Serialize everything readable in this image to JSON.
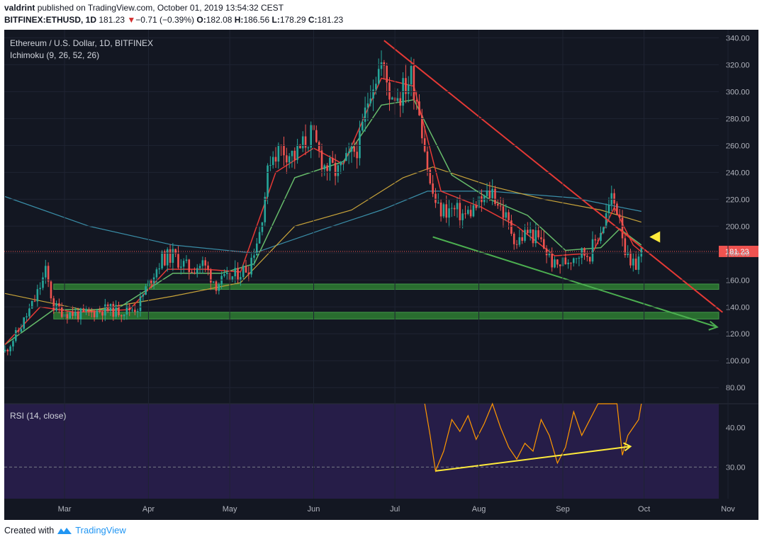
{
  "header": {
    "author": "valdrint",
    "published_text": "published on TradingView.com, October 01, 2019 13:54:32 CEST",
    "symbol": "BITFINEX:ETHUSD, 1D",
    "last": "181.23",
    "change_arrow": "▼",
    "change": "−0.71 (−0.39%)",
    "o_label": "O:",
    "o": "182.08",
    "h_label": "H:",
    "h": "186.56",
    "l_label": "L:",
    "l": "178.29",
    "c_label": "C:",
    "c": "181.23"
  },
  "footer": {
    "created_with": "Created with",
    "brand": "TradingView",
    "logo_icon": "tradingview-logo-icon"
  },
  "colors": {
    "background": "#131722",
    "rsi_background": "#2a1f4f",
    "bull": "#26a69a",
    "bear": "#ef5350",
    "tenkan": "#e53935",
    "kijun": "#66bb6a",
    "ma_yellow": "#c9a43a",
    "ma_blue": "#3a8ea8",
    "resistance": "#e53935",
    "support": "#4caf50",
    "zones": "#2e7d32",
    "rsi_line": "#ff9800",
    "rsi_trend": "#ffeb3b",
    "marker": "#ffeb3b"
  },
  "chart_data": {
    "type": "candlestick",
    "title": "Ethereum / U.S. Dollar, 1D, BITFINEX",
    "indicator": "Ichimoku (9, 26, 52, 26)",
    "last_price_label": "181.23",
    "y_ticks": [
      "340.00",
      "320.00",
      "300.00",
      "280.00",
      "260.00",
      "240.00",
      "220.00",
      "200.00",
      "180.00",
      "160.00",
      "140.00",
      "120.00",
      "100.00",
      "80.00"
    ],
    "x_ticks": [
      "Mar",
      "Apr",
      "May",
      "Jun",
      "Jul",
      "Aug",
      "Sep",
      "Oct",
      "Nov"
    ],
    "ylim": [
      68,
      346
    ],
    "price_path": [
      [
        "2019-02-07",
        107
      ],
      [
        "2019-02-12",
        122
      ],
      [
        "2019-02-18",
        145
      ],
      [
        "2019-02-22",
        166
      ],
      [
        "2019-02-25",
        140
      ],
      [
        "2019-03-01",
        136
      ],
      [
        "2019-03-08",
        134
      ],
      [
        "2019-03-15",
        138
      ],
      [
        "2019-03-22",
        137
      ],
      [
        "2019-03-28",
        140
      ],
      [
        "2019-04-02",
        162
      ],
      [
        "2019-04-06",
        176
      ],
      [
        "2019-04-10",
        178
      ],
      [
        "2019-04-16",
        168
      ],
      [
        "2019-04-21",
        172
      ],
      [
        "2019-04-26",
        157
      ],
      [
        "2019-05-02",
        162
      ],
      [
        "2019-05-08",
        170
      ],
      [
        "2019-05-12",
        196
      ],
      [
        "2019-05-16",
        252
      ],
      [
        "2019-05-20",
        258
      ],
      [
        "2019-05-25",
        252
      ],
      [
        "2019-05-31",
        268
      ],
      [
        "2019-06-05",
        245
      ],
      [
        "2019-06-10",
        240
      ],
      [
        "2019-06-14",
        250
      ],
      [
        "2019-06-18",
        262
      ],
      [
        "2019-06-22",
        305
      ],
      [
        "2019-06-26",
        320
      ],
      [
        "2019-06-29",
        300
      ],
      [
        "2019-07-03",
        298
      ],
      [
        "2019-07-07",
        312
      ],
      [
        "2019-07-10",
        288
      ],
      [
        "2019-07-14",
        230
      ],
      [
        "2019-07-17",
        212
      ],
      [
        "2019-07-22",
        212
      ],
      [
        "2019-07-27",
        208
      ],
      [
        "2019-08-02",
        218
      ],
      [
        "2019-08-06",
        226
      ],
      [
        "2019-08-10",
        210
      ],
      [
        "2019-08-15",
        188
      ],
      [
        "2019-08-19",
        196
      ],
      [
        "2019-08-24",
        188
      ],
      [
        "2019-08-29",
        170
      ],
      [
        "2019-09-02",
        174
      ],
      [
        "2019-09-06",
        180
      ],
      [
        "2019-09-11",
        180
      ],
      [
        "2019-09-16",
        202
      ],
      [
        "2019-09-19",
        220
      ],
      [
        "2019-09-22",
        210
      ],
      [
        "2019-09-24",
        182
      ],
      [
        "2019-09-26",
        168
      ],
      [
        "2019-09-28",
        172
      ],
      [
        "2019-09-30",
        181
      ]
    ],
    "tenkan_path": [
      [
        "2019-02-07",
        112
      ],
      [
        "2019-02-20",
        140
      ],
      [
        "2019-03-05",
        136
      ],
      [
        "2019-03-25",
        138
      ],
      [
        "2019-04-08",
        168
      ],
      [
        "2019-04-22",
        168
      ],
      [
        "2019-05-05",
        166
      ],
      [
        "2019-05-18",
        240
      ],
      [
        "2019-06-01",
        258
      ],
      [
        "2019-06-12",
        246
      ],
      [
        "2019-06-26",
        310
      ],
      [
        "2019-07-08",
        304
      ],
      [
        "2019-07-18",
        226
      ],
      [
        "2019-08-02",
        214
      ],
      [
        "2019-08-15",
        200
      ],
      [
        "2019-08-29",
        178
      ],
      [
        "2019-09-12",
        180
      ],
      [
        "2019-09-20",
        214
      ],
      [
        "2019-09-27",
        186
      ],
      [
        "2019-09-30",
        181
      ]
    ],
    "kijun_path": [
      [
        "2019-02-07",
        112
      ],
      [
        "2019-02-25",
        138
      ],
      [
        "2019-03-20",
        138
      ],
      [
        "2019-04-10",
        165
      ],
      [
        "2019-04-28",
        165
      ],
      [
        "2019-05-10",
        172
      ],
      [
        "2019-05-25",
        236
      ],
      [
        "2019-06-12",
        248
      ],
      [
        "2019-06-26",
        290
      ],
      [
        "2019-07-08",
        294
      ],
      [
        "2019-07-22",
        238
      ],
      [
        "2019-08-05",
        220
      ],
      [
        "2019-08-19",
        208
      ],
      [
        "2019-09-02",
        182
      ],
      [
        "2019-09-15",
        184
      ],
      [
        "2019-09-22",
        198
      ],
      [
        "2019-09-30",
        186
      ]
    ],
    "ma_yellow_path": [
      [
        "2019-02-07",
        150
      ],
      [
        "2019-03-10",
        137
      ],
      [
        "2019-04-10",
        148
      ],
      [
        "2019-05-05",
        158
      ],
      [
        "2019-05-25",
        200
      ],
      [
        "2019-06-15",
        212
      ],
      [
        "2019-07-04",
        236
      ],
      [
        "2019-07-15",
        244
      ],
      [
        "2019-08-05",
        230
      ],
      [
        "2019-08-25",
        220
      ],
      [
        "2019-09-15",
        212
      ],
      [
        "2019-09-30",
        203
      ]
    ],
    "ma_blue_path": [
      [
        "2019-02-07",
        222
      ],
      [
        "2019-03-10",
        200
      ],
      [
        "2019-04-10",
        186
      ],
      [
        "2019-05-10",
        180
      ],
      [
        "2019-06-05",
        198
      ],
      [
        "2019-06-26",
        212
      ],
      [
        "2019-07-13",
        226
      ],
      [
        "2019-08-05",
        226
      ],
      [
        "2019-09-05",
        221
      ],
      [
        "2019-09-30",
        211
      ]
    ],
    "resistance_line": [
      [
        "2019-06-27",
        338
      ],
      [
        "2019-10-30",
        136
      ]
    ],
    "support_line": [
      [
        "2019-07-15",
        192
      ],
      [
        "2019-10-28",
        125
      ]
    ],
    "zones": [
      [
        153,
        157
      ],
      [
        131,
        136
      ]
    ],
    "zone_start": [
      "2019-02-25",
      "2019-02-25"
    ],
    "marker": {
      "date": "2019-10-03",
      "price": 192
    },
    "rsi": {
      "label": "RSI (14, close)",
      "y_ticks": [
        "40.00",
        "30.00"
      ],
      "dashed_level": 30,
      "ylim": [
        22,
        46
      ],
      "path": [
        [
          "2019-07-12",
          46
        ],
        [
          "2019-07-14",
          38
        ],
        [
          "2019-07-16",
          29
        ],
        [
          "2019-07-19",
          34
        ],
        [
          "2019-07-22",
          42
        ],
        [
          "2019-07-25",
          39
        ],
        [
          "2019-07-28",
          43
        ],
        [
          "2019-07-31",
          37
        ],
        [
          "2019-08-03",
          41
        ],
        [
          "2019-08-06",
          46
        ],
        [
          "2019-08-09",
          40
        ],
        [
          "2019-08-12",
          35
        ],
        [
          "2019-08-15",
          32
        ],
        [
          "2019-08-18",
          36
        ],
        [
          "2019-08-21",
          34
        ],
        [
          "2019-08-24",
          42
        ],
        [
          "2019-08-27",
          38
        ],
        [
          "2019-08-30",
          31
        ],
        [
          "2019-09-02",
          35
        ],
        [
          "2019-09-05",
          44
        ],
        [
          "2019-09-08",
          38
        ],
        [
          "2019-09-11",
          42
        ],
        [
          "2019-09-14",
          46
        ],
        [
          "2019-09-21",
          46
        ],
        [
          "2019-09-23",
          33
        ],
        [
          "2019-09-25",
          38
        ],
        [
          "2019-09-27",
          40
        ],
        [
          "2019-09-29",
          42
        ],
        [
          "2019-09-30",
          46
        ]
      ],
      "trend_line": [
        [
          "2019-07-16",
          29
        ],
        [
          "2019-09-26",
          35.2
        ]
      ]
    }
  }
}
